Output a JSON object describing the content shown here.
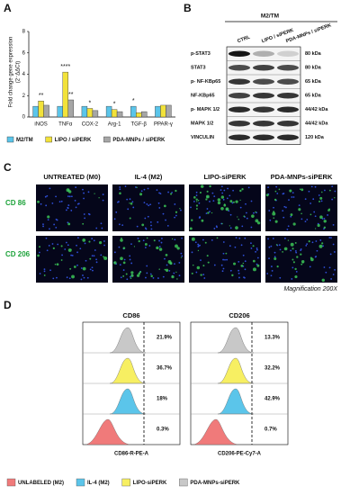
{
  "chart_data": {
    "type": "bar",
    "label": "A",
    "y_label": "Fold change gene expression",
    "y_label_2": "(2⁻ΔΔCt)",
    "categories": [
      "iNOS",
      "TNFα",
      "COX-2",
      "Arg-1",
      "TGF-β",
      "PPAR-γ"
    ],
    "series": [
      {
        "name": "M2/TM",
        "color": "#5bc5ea",
        "values": [
          1,
          1,
          1,
          1,
          1,
          1
        ]
      },
      {
        "name": "LIPO / siPERK",
        "color": "#f2e23a",
        "values": [
          1.5,
          4.2,
          0.8,
          0.7,
          0.4,
          1.1
        ]
      },
      {
        "name": "PDA-MNPs / siPERK",
        "color": "#a6a6a6",
        "values": [
          1.1,
          1.6,
          0.6,
          0.5,
          0.5,
          1.1
        ]
      }
    ],
    "ylim": [
      0,
      8
    ],
    "yticks": [
      0,
      2,
      4,
      6,
      8
    ],
    "annotations": [
      {
        "text": "**",
        "category": "iNOS",
        "series": "LIPO / siPERK"
      },
      {
        "text": "****",
        "category": "TNFα",
        "series": "LIPO / siPERK"
      },
      {
        "text": "**",
        "category": "TNFα",
        "series": "PDA-MNPs / siPERK"
      },
      {
        "text": "*",
        "category": "COX-2",
        "series": "LIPO / siPERK"
      },
      {
        "text": "*",
        "category": "Arg-1",
        "series": "LIPO / siPERK"
      },
      {
        "text": "*",
        "category": "TGF-β",
        "series": "M2/TM"
      }
    ]
  },
  "panel_b": {
    "label": "B",
    "group": "M2/TM",
    "columns": [
      "CTRL",
      "LIPO / siPERK",
      "PDA-MNPs / siPERK"
    ],
    "rows": [
      {
        "name": "p-STAT3",
        "size": "80 kDa"
      },
      {
        "name": "STAT3",
        "size": "80 kDa"
      },
      {
        "name": "p- NF-KBp65",
        "size": "65 kDa"
      },
      {
        "name": "NF-KBp65",
        "size": "65 kDa"
      },
      {
        "name": "p- MAPK 1/2",
        "size": "44/42 kDa"
      },
      {
        "name": "MAPK 1/2",
        "size": "44/42 kDa"
      },
      {
        "name": "VINCULIN",
        "size": "120 kDa"
      }
    ]
  },
  "panel_c": {
    "label": "C",
    "columns": [
      "UNTREATED (M0)",
      "IL-4 (M2)",
      "LIPO-siPERK",
      "PDA-MNPs-siPERK"
    ],
    "rows": [
      "CD 86",
      "CD 206"
    ],
    "caption": "Magnification 200X"
  },
  "panel_d": {
    "label": "D",
    "plots": [
      {
        "title": "CD86",
        "x_label": "CD86-R-PE-A",
        "percents": [
          "21.9%",
          "36.7%",
          "18%",
          "0.3%"
        ]
      },
      {
        "title": "CD206",
        "x_label": "CD206-PE-Cy7-A",
        "percents": [
          "13.3%",
          "32.2%",
          "42.9%",
          "0.7%"
        ]
      }
    ],
    "legend": [
      {
        "name": "UNLABELED (M2)",
        "color": "#f07a7a"
      },
      {
        "name": "IL-4 (M2)",
        "color": "#5bc5ea"
      },
      {
        "name": "LIPO-siPERK",
        "color": "#f7ef62"
      },
      {
        "name": "PDA-MNPs-siPERK",
        "color": "#c8c8c8"
      }
    ]
  }
}
